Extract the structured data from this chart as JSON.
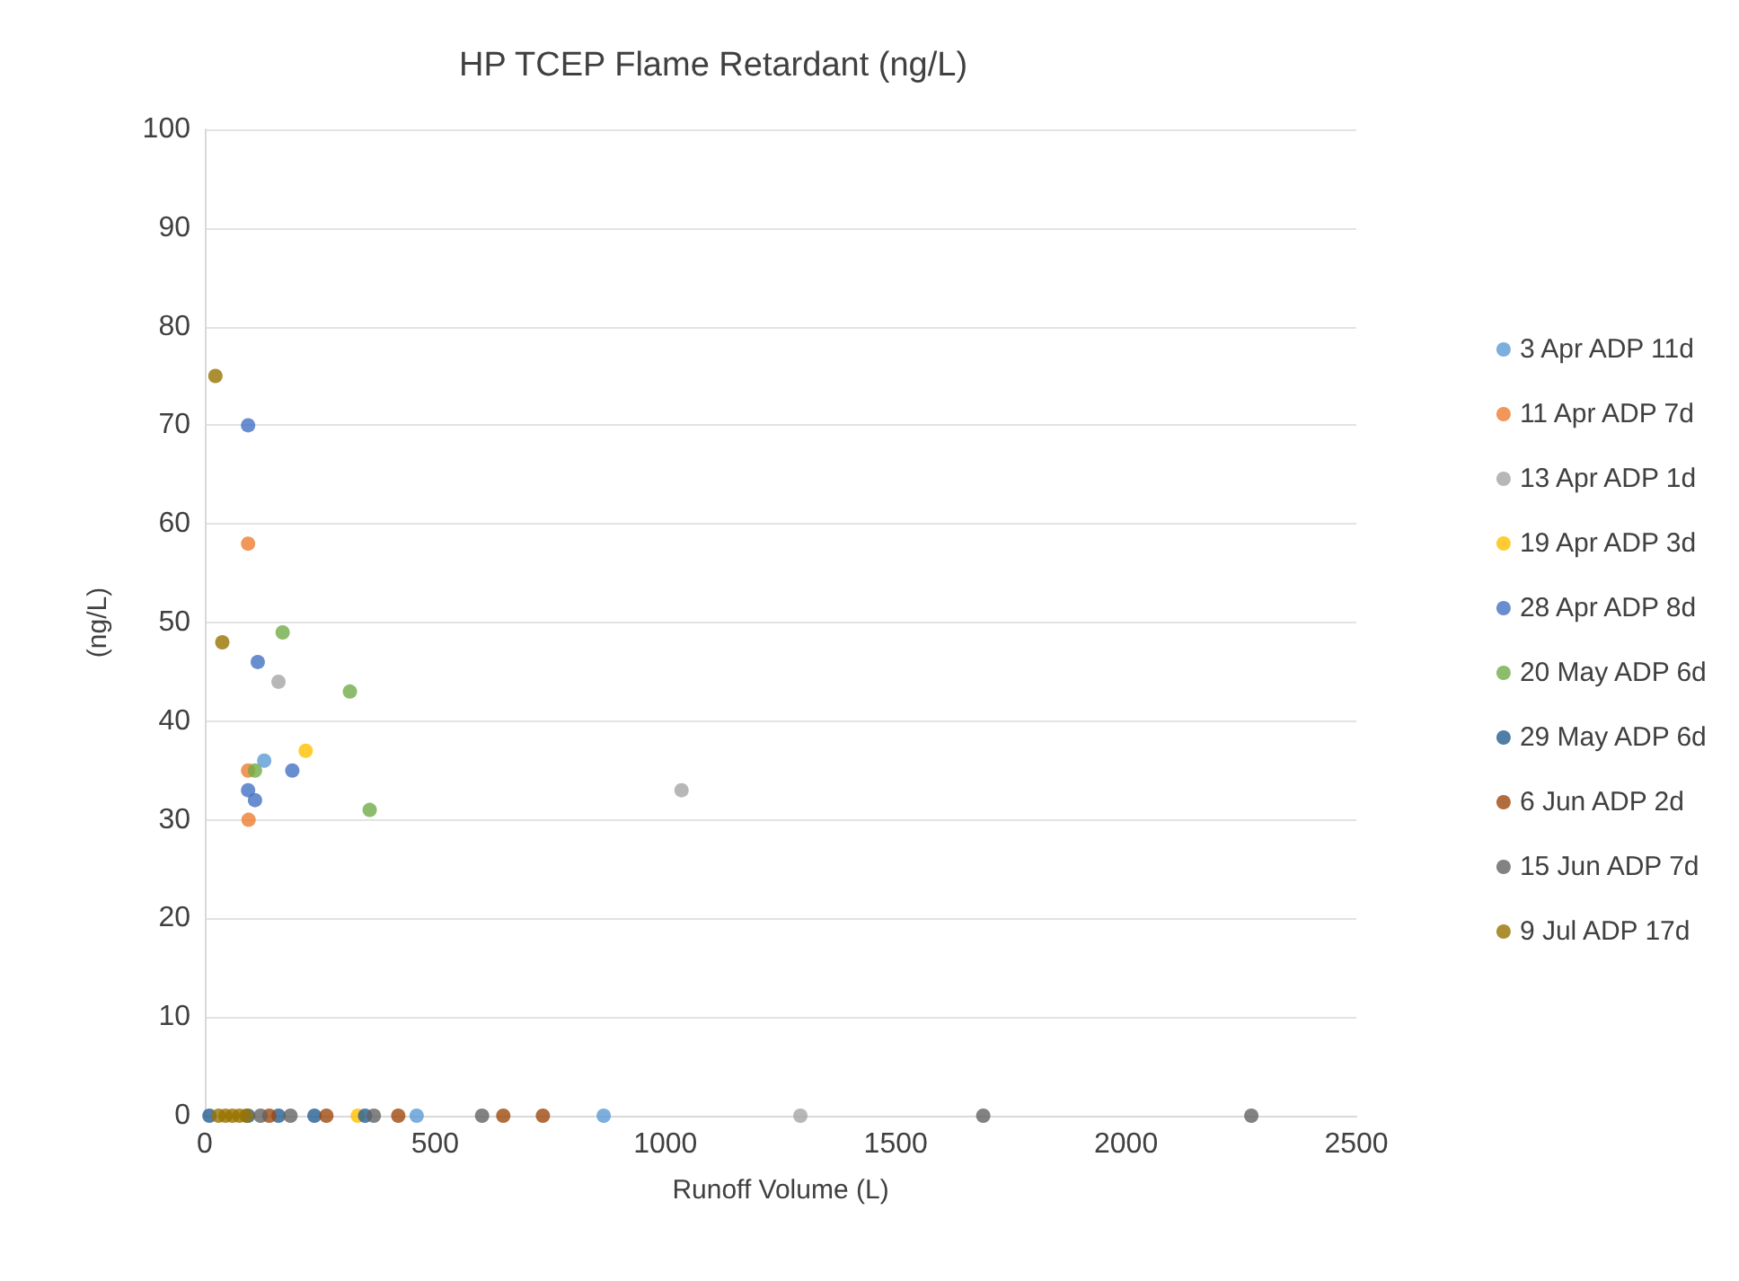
{
  "chart_data": {
    "type": "scatter",
    "title": "HP TCEP Flame Retardant (ng/L)",
    "xlabel": "Runoff Volume (L)",
    "ylabel": "(ng/L)",
    "xlim": [
      0,
      2500
    ],
    "xticks": [
      0,
      500,
      1000,
      1500,
      2000,
      2500
    ],
    "ylim": [
      0,
      100
    ],
    "yticks": [
      0,
      10,
      20,
      30,
      40,
      50,
      60,
      70,
      80,
      90,
      100
    ],
    "grid": "y",
    "legend": "right",
    "marker": "circle",
    "series": [
      {
        "name": "3 Apr ADP 11d",
        "color": "#5b9bd5",
        "x": [
          129,
          460,
          866
        ],
        "values": [
          36,
          0,
          0
        ]
      },
      {
        "name": "11 Apr ADP 7d",
        "color": "#ed7d31",
        "x": [
          94,
          94,
          95
        ],
        "values": [
          58,
          35,
          30
        ]
      },
      {
        "name": "13 Apr ADP 1d",
        "color": "#a5a5a5",
        "x": [
          160,
          1035,
          1293
        ],
        "values": [
          44,
          33,
          0
        ]
      },
      {
        "name": "19 Apr ADP 3d",
        "color": "#ffc000",
        "x": [
          219,
          332
        ],
        "values": [
          37,
          0
        ]
      },
      {
        "name": "28 Apr ADP 8d",
        "color": "#4472c4",
        "x": [
          94,
          115,
          190,
          94,
          109
        ],
        "values": [
          70,
          46,
          35,
          33,
          32
        ]
      },
      {
        "name": "20 May ADP 6d",
        "color": "#70ad47",
        "x": [
          169,
          315,
          109,
          358
        ],
        "values": [
          49,
          43,
          35,
          31
        ]
      },
      {
        "name": "29 May ADP 6d",
        "color": "#255e91",
        "x": [
          10,
          94,
          160,
          238,
          348
        ],
        "values": [
          0,
          0,
          0,
          0,
          0
        ]
      },
      {
        "name": "6 Jun ADP 2d",
        "color": "#9e480e",
        "x": [
          140,
          264,
          420,
          648,
          734
        ],
        "values": [
          0,
          0,
          0,
          0,
          0
        ]
      },
      {
        "name": "15 Jun ADP 7d",
        "color": "#636363",
        "x": [
          121,
          186,
          367,
          602,
          1690,
          2272
        ],
        "values": [
          0,
          0,
          0,
          0,
          0,
          0
        ]
      },
      {
        "name": "9 Jul ADP 17d",
        "color": "#997300",
        "x": [
          23,
          38,
          30,
          45,
          60,
          75,
          90
        ],
        "values": [
          75,
          48,
          0,
          0,
          0,
          0,
          0
        ]
      }
    ]
  }
}
